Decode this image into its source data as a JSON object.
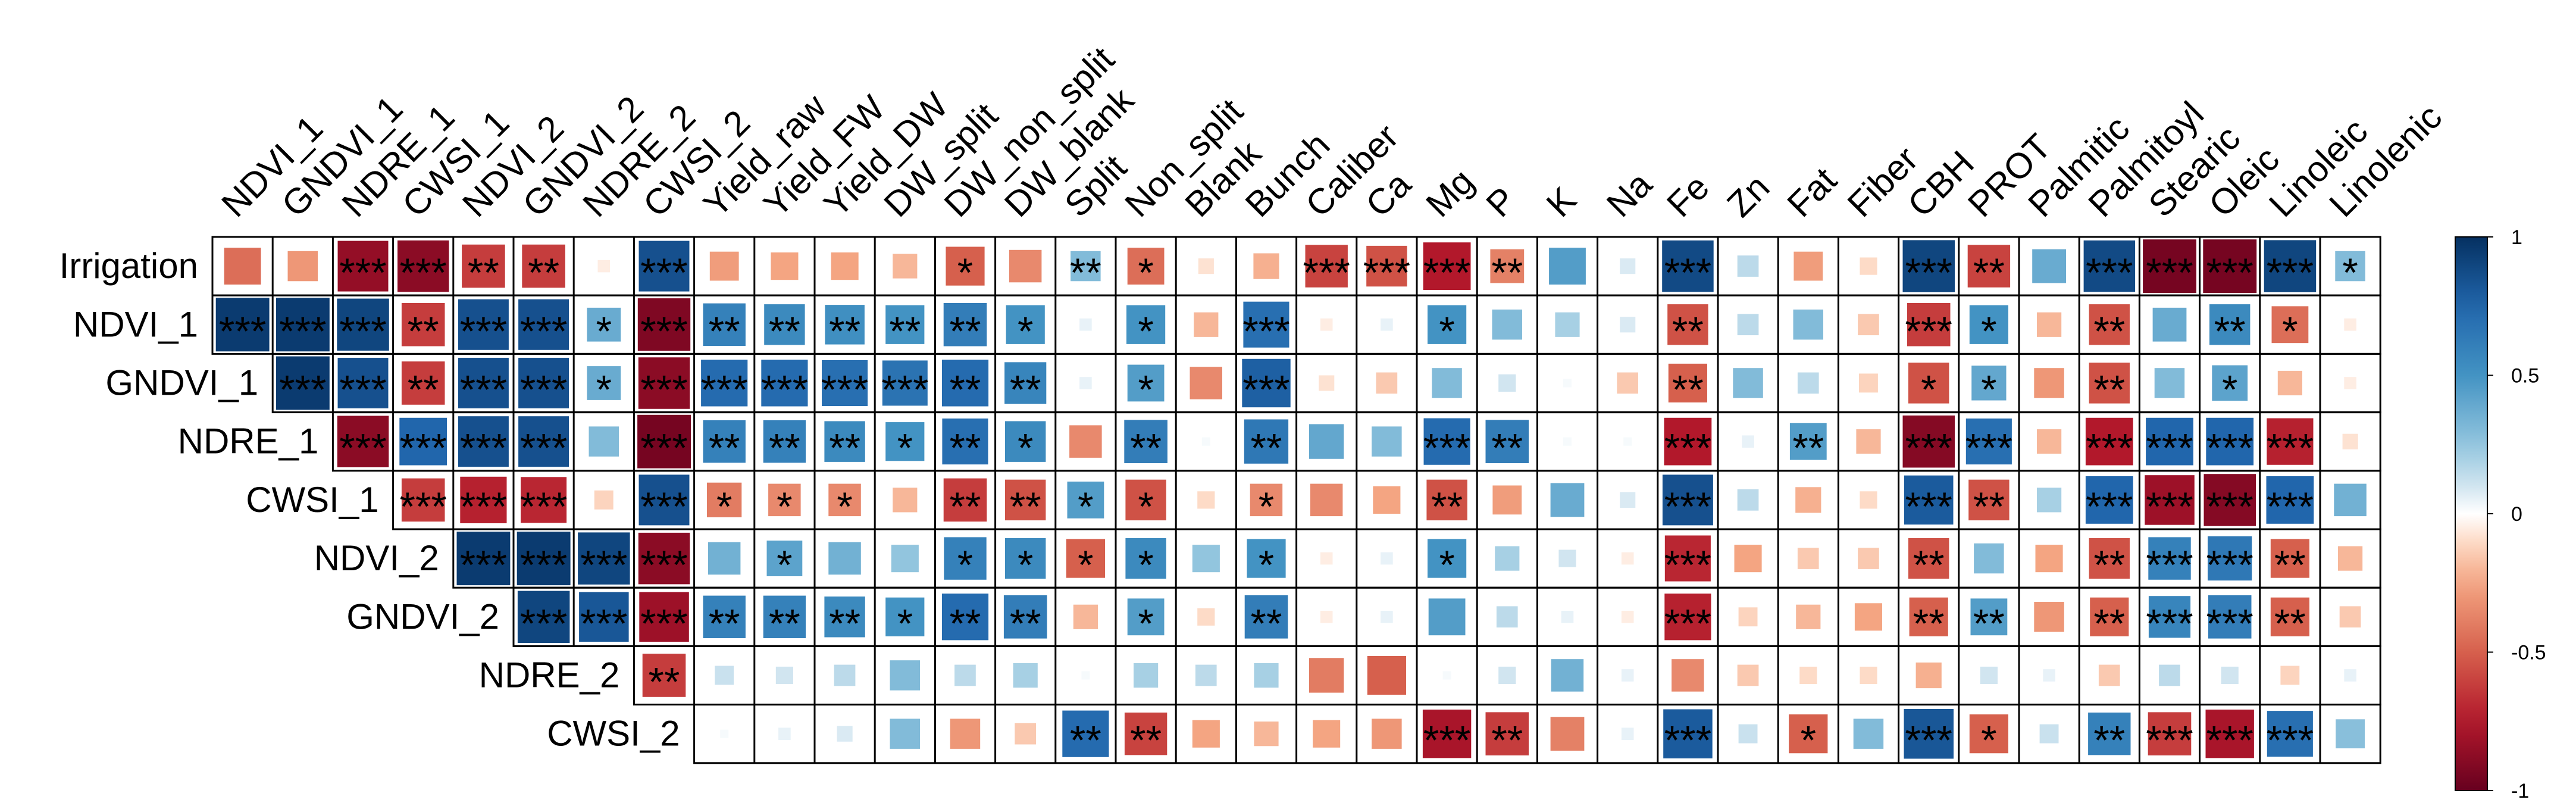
{
  "chart_data": {
    "type": "heatmap",
    "title": "",
    "row_labels": [
      "Irrigation",
      "NDVI_1",
      "GNDVI_1",
      "NDRE_1",
      "CWSI_1",
      "NDVI_2",
      "GNDVI_2",
      "NDRE_2",
      "CWSI_2"
    ],
    "col_labels": [
      "NDVI_1",
      "GNDVI_1",
      "NDRE_1",
      "CWSI_1",
      "NDVI_2",
      "GNDVI_2",
      "NDRE_2",
      "CWSI_2",
      "Yield_raw",
      "Yield_FW",
      "Yield_DW",
      "DW_split",
      "DW_non_split",
      "DW_blank",
      "Split",
      "Non_split",
      "Blank",
      "Bunch",
      "Caliber",
      "Ca",
      "Mg",
      "P",
      "K",
      "Na",
      "Fe",
      "Zn",
      "Fat",
      "Fiber",
      "CBH",
      "PROT",
      "Palmitic",
      "Palmitoyl",
      "Stearic",
      "Oleic",
      "Linoleic",
      "Linolenic"
    ],
    "values": [
      [
        -0.45,
        -0.3,
        -0.85,
        -0.88,
        -0.62,
        -0.62,
        -0.05,
        0.85,
        -0.28,
        -0.25,
        -0.25,
        -0.2,
        -0.5,
        -0.35,
        0.3,
        -0.45,
        -0.08,
        -0.22,
        -0.6,
        -0.55,
        -0.75,
        -0.38,
        0.45,
        0.08,
        0.88,
        0.15,
        -0.28,
        -0.1,
        0.9,
        -0.6,
        0.38,
        0.88,
        -0.95,
        -0.95,
        0.9,
        0.3
      ],
      [
        0.95,
        0.95,
        0.9,
        -0.62,
        0.85,
        0.85,
        0.38,
        -0.92,
        0.6,
        0.55,
        0.52,
        0.5,
        0.62,
        0.5,
        0.05,
        0.5,
        -0.2,
        0.7,
        -0.05,
        0.05,
        0.5,
        0.3,
        0.2,
        0.08,
        -0.55,
        0.15,
        0.3,
        -0.15,
        -0.62,
        0.5,
        -0.2,
        -0.55,
        0.38,
        0.55,
        -0.45,
        -0.05
      ],
      [
        null,
        0.95,
        0.85,
        -0.62,
        0.85,
        0.85,
        0.38,
        -0.88,
        0.72,
        0.72,
        0.7,
        0.68,
        0.72,
        0.58,
        0.05,
        0.45,
        -0.35,
        0.78,
        -0.08,
        -0.15,
        0.3,
        0.1,
        0.02,
        -0.15,
        -0.5,
        0.3,
        0.15,
        -0.12,
        -0.55,
        0.4,
        -0.3,
        -0.55,
        0.3,
        0.42,
        -0.2,
        -0.05
      ],
      [
        null,
        null,
        -0.88,
        0.75,
        0.85,
        0.85,
        0.3,
        -0.95,
        0.6,
        0.6,
        0.55,
        0.5,
        0.7,
        0.55,
        -0.35,
        0.62,
        0.02,
        0.65,
        0.4,
        0.3,
        0.72,
        0.62,
        0.02,
        0.02,
        -0.75,
        0.05,
        0.45,
        -0.2,
        -0.9,
        0.7,
        -0.2,
        -0.75,
        0.75,
        0.75,
        -0.72,
        -0.08
      ],
      [
        null,
        null,
        null,
        -0.62,
        -0.72,
        -0.7,
        -0.12,
        0.85,
        -0.4,
        -0.35,
        -0.35,
        -0.2,
        -0.62,
        -0.55,
        0.45,
        -0.55,
        -0.1,
        -0.35,
        -0.35,
        -0.25,
        -0.55,
        -0.28,
        0.38,
        0.08,
        0.85,
        0.15,
        -0.22,
        -0.1,
        0.8,
        -0.55,
        0.2,
        0.75,
        -0.82,
        -0.9,
        0.75,
        0.35
      ],
      [
        null,
        null,
        null,
        null,
        0.95,
        0.95,
        0.9,
        -0.88,
        0.35,
        0.42,
        0.35,
        0.25,
        0.6,
        0.55,
        -0.5,
        0.55,
        0.25,
        0.5,
        -0.05,
        0.05,
        0.5,
        0.2,
        0.1,
        -0.05,
        -0.7,
        -0.25,
        -0.15,
        -0.15,
        -0.55,
        0.3,
        -0.25,
        -0.55,
        0.6,
        0.65,
        -0.5,
        -0.2
      ],
      [
        null,
        null,
        null,
        null,
        null,
        0.9,
        0.82,
        -0.82,
        0.6,
        0.6,
        0.55,
        0.5,
        0.72,
        0.62,
        -0.2,
        0.45,
        -0.1,
        0.62,
        -0.05,
        0.05,
        0.45,
        0.15,
        0.05,
        -0.05,
        -0.72,
        -0.12,
        -0.2,
        -0.25,
        -0.5,
        0.45,
        -0.3,
        -0.5,
        0.58,
        0.62,
        -0.5,
        -0.15
      ],
      [
        null,
        null,
        null,
        null,
        null,
        null,
        null,
        -0.62,
        0.12,
        0.1,
        0.15,
        0.3,
        0.15,
        0.2,
        0.02,
        0.2,
        0.15,
        0.2,
        -0.4,
        -0.5,
        0.02,
        0.1,
        0.35,
        0.05,
        -0.35,
        -0.15,
        -0.1,
        -0.1,
        -0.22,
        0.1,
        0.05,
        -0.15,
        0.15,
        0.1,
        -0.12,
        0.05
      ],
      [
        null,
        null,
        null,
        null,
        null,
        null,
        null,
        null,
        0.02,
        0.05,
        0.08,
        0.3,
        -0.3,
        -0.15,
        0.72,
        -0.6,
        -0.25,
        -0.2,
        -0.25,
        -0.3,
        -0.78,
        -0.62,
        -0.38,
        0.05,
        0.8,
        0.12,
        -0.5,
        0.3,
        0.82,
        -0.5,
        0.12,
        0.6,
        -0.62,
        -0.78,
        0.7,
        0.28
      ]
    ],
    "significance": [
      [
        "",
        "",
        "***",
        "***",
        "**",
        "**",
        "",
        "***",
        "",
        "",
        "",
        "",
        "*",
        "",
        "**",
        "*",
        "",
        "",
        "***",
        "***",
        "***",
        "**",
        "",
        "",
        "***",
        "",
        "",
        "",
        "***",
        "**",
        "",
        "***",
        "***",
        "***",
        "***",
        "*"
      ],
      [
        "***",
        "***",
        "***",
        "**",
        "***",
        "***",
        "*",
        "***",
        "**",
        "**",
        "**",
        "**",
        "**",
        "*",
        "",
        "*",
        "",
        "***",
        "",
        "",
        "*",
        "",
        "",
        "",
        "**",
        "",
        "",
        "",
        "***",
        "*",
        "",
        "**",
        "",
        "**",
        "*",
        ""
      ],
      [
        "",
        "***",
        "***",
        "**",
        "***",
        "***",
        "*",
        "***",
        "***",
        "***",
        "***",
        "***",
        "**",
        "**",
        "",
        "*",
        "",
        "***",
        "",
        "",
        "",
        "",
        "",
        "",
        "**",
        "",
        "",
        "",
        "*",
        "*",
        "",
        "**",
        "",
        "*",
        "",
        ""
      ],
      [
        "",
        "",
        "***",
        "***",
        "***",
        "***",
        "",
        "***",
        "**",
        "**",
        "**",
        "*",
        "**",
        "*",
        "",
        "**",
        "",
        "**",
        "",
        "",
        "***",
        "**",
        "",
        "",
        "***",
        "",
        "**",
        "",
        "***",
        "***",
        "",
        "***",
        "***",
        "***",
        "***",
        ""
      ],
      [
        "",
        "",
        "",
        "***",
        "***",
        "***",
        "",
        "***",
        "*",
        "*",
        "*",
        "",
        "**",
        "**",
        "*",
        "*",
        "",
        "*",
        "",
        "",
        "**",
        "",
        "",
        "",
        "***",
        "",
        "",
        "",
        "***",
        "**",
        "",
        "***",
        "***",
        "***",
        "***",
        ""
      ],
      [
        "",
        "",
        "",
        "",
        "***",
        "***",
        "***",
        "***",
        "",
        "*",
        "",
        "",
        "*",
        "*",
        "*",
        "*",
        "",
        "*",
        "",
        "",
        "*",
        "",
        "",
        "",
        "***",
        "",
        "",
        "",
        "**",
        "",
        "",
        "**",
        "***",
        "***",
        "**",
        ""
      ],
      [
        "",
        "",
        "",
        "",
        "",
        "***",
        "***",
        "***",
        "**",
        "**",
        "**",
        "*",
        "**",
        "**",
        "",
        "*",
        "",
        "**",
        "",
        "",
        "",
        "",
        "",
        "",
        "***",
        "",
        "",
        "",
        "**",
        "**",
        "",
        "**",
        "***",
        "***",
        "**",
        ""
      ],
      [
        "",
        "",
        "",
        "",
        "",
        "",
        "",
        "**",
        "",
        "",
        "",
        "",
        "",
        "",
        "",
        "",
        "",
        "",
        "",
        "",
        "",
        "",
        "",
        "",
        "",
        "",
        "",
        "",
        "",
        "",
        "",
        "",
        "",
        "",
        "",
        ""
      ],
      [
        "",
        "",
        "",
        "",
        "",
        "",
        "",
        "",
        "",
        "",
        "",
        "",
        "",
        "",
        "**",
        "**",
        "",
        "",
        "",
        "",
        "***",
        "**",
        "",
        "",
        "***",
        "",
        "*",
        "",
        "***",
        "*",
        "",
        "**",
        "***",
        "***",
        "***",
        ""
      ]
    ],
    "first_col": [
      0,
      0,
      1,
      2,
      3,
      4,
      5,
      7,
      8
    ],
    "colorbar": {
      "min": -1,
      "max": 1,
      "ticks": [
        "1",
        "0.5",
        "0",
        "-0.5",
        "-1"
      ],
      "tick_values": [
        1,
        0.5,
        0,
        -0.5,
        -1
      ]
    },
    "colors": {
      "negative": "#67001F",
      "mid": "#FFFFFF",
      "positive": "#053061",
      "grid": "#000000"
    }
  }
}
